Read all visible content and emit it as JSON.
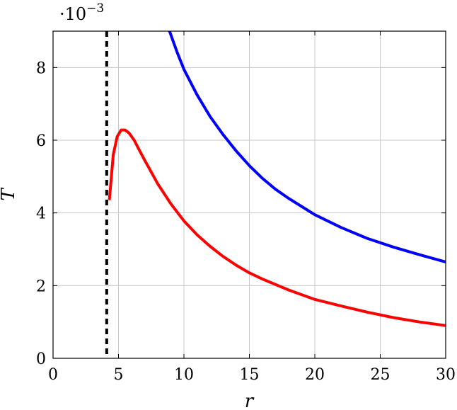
{
  "chart_data": {
    "type": "line",
    "title": "",
    "xlabel": "r",
    "ylabel": "T",
    "multiplier_text": "·10",
    "multiplier_exp": "−3",
    "xlim": [
      0,
      30
    ],
    "ylim": [
      0,
      9
    ],
    "y_scale_factor": 0.001,
    "grid": true,
    "legend": "none",
    "x_ticks": [
      0,
      5,
      10,
      15,
      20,
      25,
      30
    ],
    "x_tick_labels": [
      "0",
      "5",
      "10",
      "15",
      "20",
      "25",
      "30"
    ],
    "y_ticks": [
      0,
      2,
      4,
      6,
      8
    ],
    "y_tick_labels": [
      "0",
      "2",
      "4",
      "6",
      "8"
    ],
    "vertical_line": {
      "x": 4.1,
      "style": "dashed",
      "color": "#000000"
    },
    "series": [
      {
        "color": "#0000ff",
        "x": [
          8.9,
          9.5,
          10,
          11,
          12,
          13,
          14,
          15,
          16,
          17,
          18,
          20,
          22,
          24,
          25,
          26,
          28,
          30
        ],
        "y": [
          9.0,
          8.4,
          7.95,
          7.25,
          6.65,
          6.15,
          5.7,
          5.3,
          4.95,
          4.65,
          4.4,
          3.95,
          3.6,
          3.3,
          3.18,
          3.06,
          2.85,
          2.65
        ]
      },
      {
        "color": "#ff0000",
        "x": [
          4.3,
          4.6,
          4.9,
          5.2,
          5.5,
          5.8,
          6.2,
          6.6,
          7,
          8,
          9,
          10,
          11,
          12,
          13,
          14,
          15,
          16,
          18,
          20,
          22,
          24,
          26,
          28,
          30
        ],
        "y": [
          4.35,
          5.6,
          6.1,
          6.28,
          6.28,
          6.2,
          6.0,
          5.72,
          5.45,
          4.8,
          4.25,
          3.78,
          3.4,
          3.08,
          2.8,
          2.56,
          2.35,
          2.18,
          1.88,
          1.62,
          1.44,
          1.27,
          1.12,
          1.0,
          0.9
        ]
      }
    ]
  }
}
